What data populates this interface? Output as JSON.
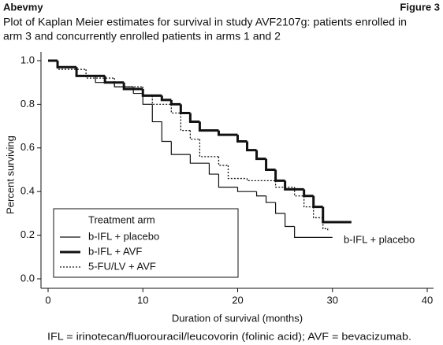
{
  "chart_data": {
    "type": "step",
    "header": "Abevmy",
    "figure_label": "Figure 3",
    "title": [
      "Plot of Kaplan Meier estimates for survival in study AVF2107g: patients enrolled in",
      "arm 3 and concurrently enrolled patients in arms 1 and 2"
    ],
    "xlabel": "Duration of survival (months)",
    "ylabel": "Percent surviving",
    "xlim": [
      0,
      40
    ],
    "ylim": [
      0,
      1
    ],
    "xticks": [
      0,
      10,
      20,
      30,
      40
    ],
    "yticks": [
      {
        "value": 0,
        "label": "0.0"
      },
      {
        "value": 0.2,
        "label": "0.2"
      },
      {
        "value": 0.4,
        "label": "0.4"
      },
      {
        "value": 0.6,
        "label": "0.6"
      },
      {
        "value": 0.8,
        "label": "0.8"
      },
      {
        "value": 1,
        "label": "1.0"
      }
    ],
    "legend_title": "Treatment arm",
    "legend_position": "lower left",
    "series": [
      {
        "name": "b-IFL + placebo",
        "color": "#111",
        "style": "thin",
        "x": [
          0,
          1,
          3,
          5,
          7,
          9,
          10,
          11,
          12,
          13,
          15,
          17,
          18,
          20,
          22,
          23,
          24,
          25,
          26,
          30
        ],
        "values": [
          1.0,
          0.97,
          0.93,
          0.9,
          0.88,
          0.85,
          0.8,
          0.72,
          0.63,
          0.57,
          0.53,
          0.48,
          0.42,
          0.4,
          0.38,
          0.35,
          0.3,
          0.24,
          0.19,
          0.19
        ]
      },
      {
        "name": "b-IFL + AVF",
        "color": "#111",
        "style": "thick",
        "x": [
          0,
          1,
          3,
          6,
          8,
          10,
          12,
          13,
          14,
          15,
          16,
          18,
          20,
          21,
          22,
          23,
          24,
          25,
          27,
          28,
          29,
          32
        ],
        "values": [
          1.0,
          0.97,
          0.93,
          0.9,
          0.87,
          0.84,
          0.82,
          0.8,
          0.76,
          0.72,
          0.68,
          0.66,
          0.63,
          0.59,
          0.55,
          0.5,
          0.45,
          0.41,
          0.38,
          0.33,
          0.26,
          0.26
        ]
      },
      {
        "name": "5-FU/LV + AVF",
        "color": "#111",
        "style": "dotted",
        "x": [
          0,
          1,
          4,
          7,
          10,
          11,
          13,
          14,
          15,
          16,
          18,
          19,
          21,
          24,
          26,
          27,
          28,
          29,
          29.5
        ],
        "values": [
          1.0,
          0.96,
          0.92,
          0.88,
          0.84,
          0.8,
          0.76,
          0.68,
          0.64,
          0.56,
          0.52,
          0.46,
          0.45,
          0.42,
          0.38,
          0.33,
          0.28,
          0.23,
          0.22
        ]
      }
    ],
    "annotation": "b-IFL + placebo",
    "footnote": "IFL = irinotecan/fluorouracil/leucovorin (folinic acid); AVF = bevacizumab."
  }
}
